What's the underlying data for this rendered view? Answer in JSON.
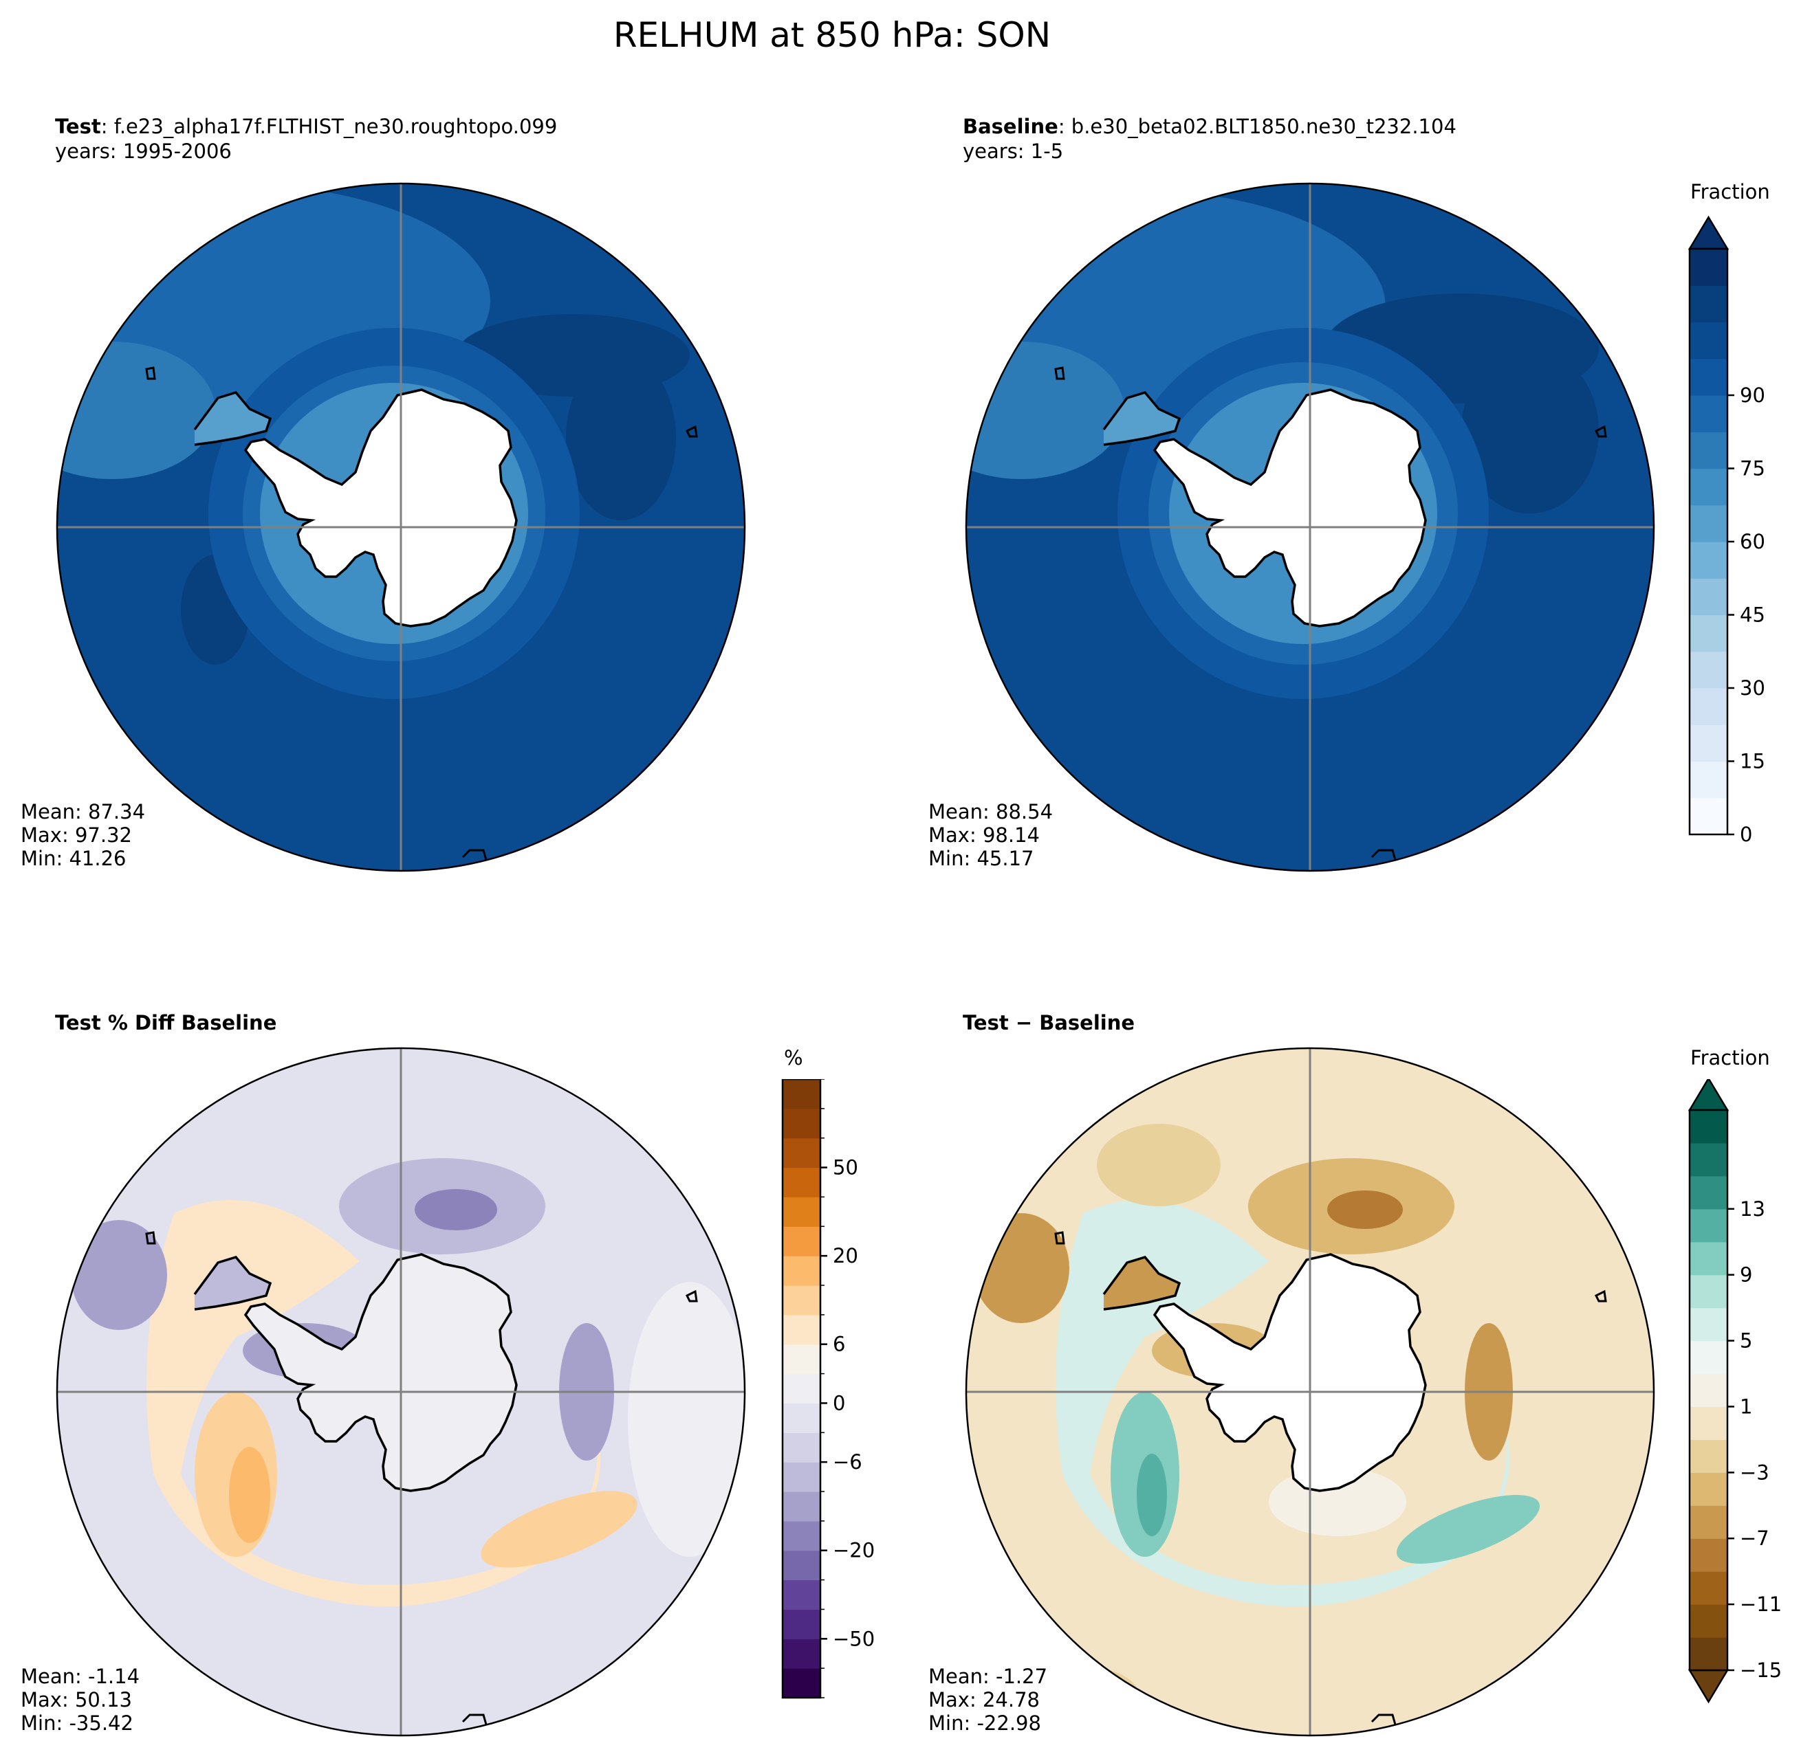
{
  "suptitle": "RELHUM at 850 hPa: SON",
  "panels": [
    {
      "id": "test",
      "title_bold": "Test",
      "title_rest": ": f.e23_alpha17f.FLTHIST_ne30.roughtopo.099",
      "subtitle": "years: 1995-2006",
      "stats": {
        "mean": "Mean: 87.34",
        "max": "Max: 97.32",
        "min": "Min: 41.26"
      }
    },
    {
      "id": "baseline",
      "title_bold": "Baseline",
      "title_rest": ": b.e30_beta02.BLT1850.ne30_t232.104",
      "subtitle": "years: 1-5",
      "stats": {
        "mean": "Mean: 88.54",
        "max": "Max: 98.14",
        "min": "Min: 45.17"
      }
    },
    {
      "id": "pctdiff",
      "title_bold": "Test % Diff Baseline",
      "title_rest": "",
      "subtitle": "",
      "stats": {
        "mean": "Mean: -1.14",
        "max": "Max: 50.13",
        "min": "Min: -35.42"
      }
    },
    {
      "id": "diff",
      "title_bold": "Test − Baseline",
      "title_rest": "",
      "subtitle": "",
      "stats": {
        "mean": "Mean: -1.27",
        "max": "Max: 24.78",
        "min": "Min: -22.98"
      }
    }
  ],
  "colorbars": [
    {
      "id": "abs",
      "label": "Fraction",
      "colormap": "Blues",
      "extend": "max",
      "ticks": [
        "0",
        "15",
        "30",
        "45",
        "60",
        "75",
        "90"
      ],
      "colors": [
        "#f7fbff",
        "#eaf2fb",
        "#dde9f6",
        "#cfe1f2",
        "#c1d9ed",
        "#a9cfe5",
        "#90c2df",
        "#72b2d8",
        "#57a0ce",
        "#3f8fc5",
        "#2c7bb6",
        "#1c68ae",
        "#0f57a0",
        "#0a4a8f",
        "#08407d",
        "#08306b"
      ]
    },
    {
      "id": "pct",
      "label": "%",
      "colormap": "PuOr_r",
      "ticks": [
        "−50",
        "−20",
        "−6",
        "0",
        "6",
        "20",
        "50"
      ],
      "colors": [
        "#2d004b",
        "#3d1268",
        "#4e2a84",
        "#61439a",
        "#7767ab",
        "#8c83bb",
        "#a6a1cb",
        "#bebad9",
        "#d3d1e6",
        "#e2e1ee",
        "#eeeef3",
        "#f6f2ea",
        "#fde6c7",
        "#fdd19a",
        "#fcba6d",
        "#f39b3e",
        "#e0801a",
        "#c9660d",
        "#ad520a",
        "#8f4108",
        "#7f3b08"
      ]
    },
    {
      "id": "diff",
      "label": "Fraction",
      "colormap": "BrBG",
      "extend": "both",
      "ticks": [
        "−15",
        "−11",
        "−7",
        "−3",
        "1",
        "5",
        "9",
        "13"
      ],
      "colors": [
        "#6b4010",
        "#84510f",
        "#9e6219",
        "#b57b34",
        "#c9994f",
        "#dcb873",
        "#e9d19c",
        "#f2e4c4",
        "#f5f0e6",
        "#eef5f3",
        "#d6eee9",
        "#b2e2d8",
        "#82cdbf",
        "#53b0a2",
        "#2e8f82",
        "#157466",
        "#03594c"
      ]
    }
  ],
  "chart_data": [
    {
      "type": "heatmap",
      "title": "Test: f.e23_alpha17f.FLTHIST_ne30.roughtopo.099",
      "subtitle": "years: 1995-2006",
      "projection": "south polar stereographic",
      "units": "Fraction",
      "mean": 87.34,
      "max": 97.32,
      "min": 41.26,
      "levels": [
        0,
        15,
        30,
        45,
        60,
        75,
        90
      ]
    },
    {
      "type": "heatmap",
      "title": "Baseline: b.e30_beta02.BLT1850.ne30_t232.104",
      "subtitle": "years: 1-5",
      "projection": "south polar stereographic",
      "units": "Fraction",
      "mean": 88.54,
      "max": 98.14,
      "min": 45.17,
      "levels": [
        0,
        15,
        30,
        45,
        60,
        75,
        90
      ]
    },
    {
      "type": "heatmap",
      "title": "Test % Diff Baseline",
      "projection": "south polar stereographic",
      "units": "%",
      "mean": -1.14,
      "max": 50.13,
      "min": -35.42,
      "levels": [
        -50,
        -20,
        -6,
        0,
        6,
        20,
        50
      ]
    },
    {
      "type": "heatmap",
      "title": "Test − Baseline",
      "projection": "south polar stereographic",
      "units": "Fraction",
      "mean": -1.27,
      "max": 24.78,
      "min": -22.98,
      "levels": [
        -15,
        -11,
        -7,
        -3,
        1,
        5,
        9,
        13
      ]
    }
  ]
}
